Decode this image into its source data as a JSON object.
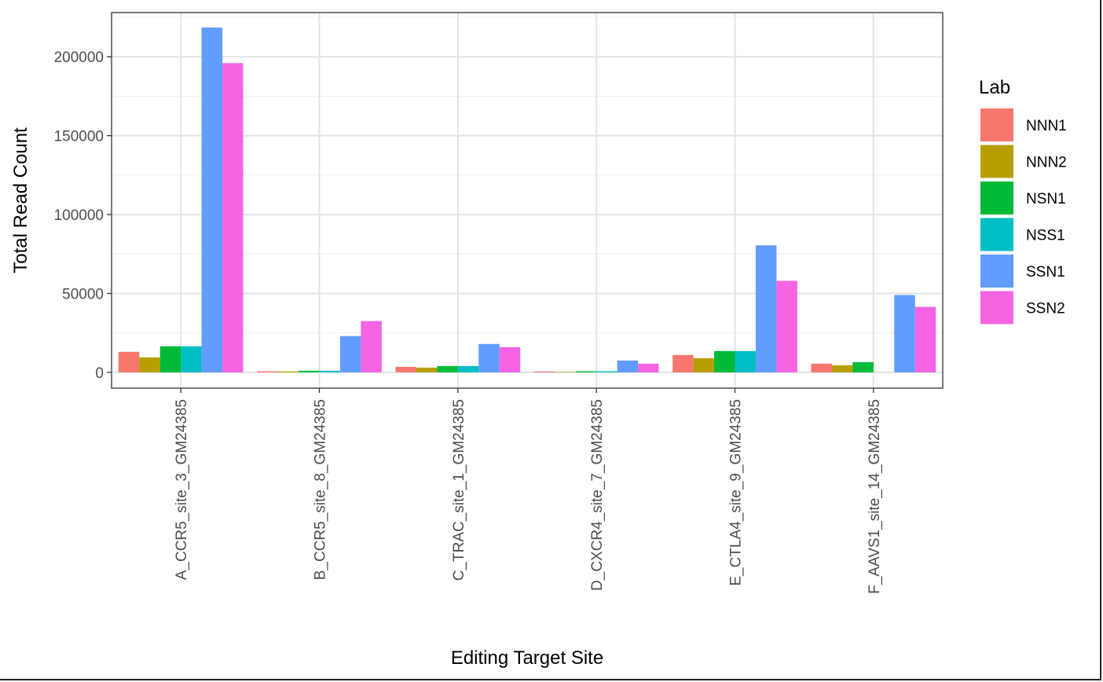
{
  "chart_data": {
    "type": "bar",
    "xlabel": "Editing Target Site",
    "ylabel": "Total Read Count",
    "legend_title": "Lab",
    "legend_position": "right",
    "grid": true,
    "ylim": [
      -10000,
      228000
    ],
    "yticks": [
      0,
      50000,
      100000,
      150000,
      200000
    ],
    "ytick_labels": [
      "0",
      "50000",
      "100000",
      "150000",
      "200000"
    ],
    "categories": [
      "A_CCR5_site_3_GM24385",
      "B_CCR5_site_8_GM24385",
      "C_TRAC_site_1_GM24385",
      "D_CXCR4_site_7_GM24385",
      "E_CTLA4_site_9_GM24385",
      "F_AAVS1_site_14_GM24385"
    ],
    "series": [
      {
        "name": "NNN1",
        "color": "#F8766D",
        "values": [
          13000,
          700,
          3500,
          600,
          11000,
          5500
        ]
      },
      {
        "name": "NNN2",
        "color": "#B79F00",
        "values": [
          9500,
          600,
          3000,
          300,
          9000,
          4500
        ]
      },
      {
        "name": "NSN1",
        "color": "#00BA38",
        "values": [
          16500,
          1000,
          4000,
          700,
          13500,
          6500
        ]
      },
      {
        "name": "NSS1",
        "color": "#00BFC4",
        "values": [
          16500,
          1000,
          4000,
          700,
          13500,
          0
        ]
      },
      {
        "name": "SSN1",
        "color": "#619CFF",
        "values": [
          218500,
          23000,
          18000,
          7500,
          80500,
          49000
        ]
      },
      {
        "name": "SSN2",
        "color": "#F564E3",
        "values": [
          196000,
          32500,
          16000,
          5500,
          58000,
          41500
        ]
      }
    ]
  }
}
